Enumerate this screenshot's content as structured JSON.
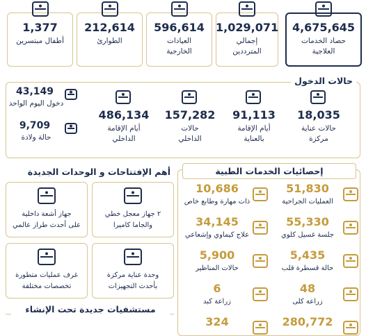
{
  "summary": [
    {
      "value": "4,675,645",
      "label": [
        "حصاد الخدمات",
        "العلاجية"
      ]
    },
    {
      "value": "1,029,071",
      "label": [
        "إجمالي",
        "المترددين"
      ]
    },
    {
      "value": "596,614",
      "label": [
        "العيادات",
        "الخارجية"
      ]
    },
    {
      "value": "212,614",
      "label": [
        "الطوارئ"
      ]
    },
    {
      "value": "1,377",
      "label": [
        "أطفال مبتسرين"
      ]
    }
  ],
  "admissions": {
    "title": "حالات الدخول",
    "items": [
      {
        "value": "18,035",
        "label": [
          "حالات عناية",
          "مركزة"
        ]
      },
      {
        "value": "91,113",
        "label": [
          "أيام الإقامة",
          "بالعناية"
        ]
      },
      {
        "value": "157,282",
        "label": [
          "حالات",
          "الداخلي"
        ]
      },
      {
        "value": "486,134",
        "label": [
          "أيام الإقامة",
          "الداخلي"
        ]
      }
    ],
    "side": [
      {
        "value": "43,149",
        "label": "دخول اليوم الواحد"
      },
      {
        "value": "9,709",
        "label": "حالة ولادة"
      }
    ]
  },
  "openings": {
    "title": "أهم الإفتتاحات و الوحدات الجديدة",
    "items": [
      {
        "lines": [
          "٢ جهاز معجل خطي",
          "والجاما كاميرا"
        ]
      },
      {
        "lines": [
          "جهاز أشعة داخلية",
          "على أحدث طراز عالمي"
        ]
      },
      {
        "lines": [
          "وحدة عناية مركزة",
          "بأحدث التجهيزات"
        ]
      },
      {
        "lines": [
          "غرف عمليات متطورة",
          "تخصصات مختلفة"
        ]
      }
    ],
    "footer": "مستشفيات جديدة تحت الإنشاء"
  },
  "medical": {
    "title": "إحصائيات الخدمات الطبية",
    "items": [
      {
        "value": "51,830",
        "label": "العمليات الجراحية"
      },
      {
        "value": "10,686",
        "label": "ذات مهارة وطابع خاص"
      },
      {
        "value": "55,330",
        "label": "جلسة غسيل كلوي"
      },
      {
        "value": "34,145",
        "label": "علاج كيماوي وإشعاعي"
      },
      {
        "value": "5,435",
        "label": "حالة قسطرة قلب"
      },
      {
        "value": "5,900",
        "label": "حالات المناظير"
      },
      {
        "value": "48",
        "label": "زراعة كلى"
      },
      {
        "value": "6",
        "label": "زراعة كبد"
      },
      {
        "value": "280,772"
      },
      {
        "value": "324"
      }
    ]
  }
}
